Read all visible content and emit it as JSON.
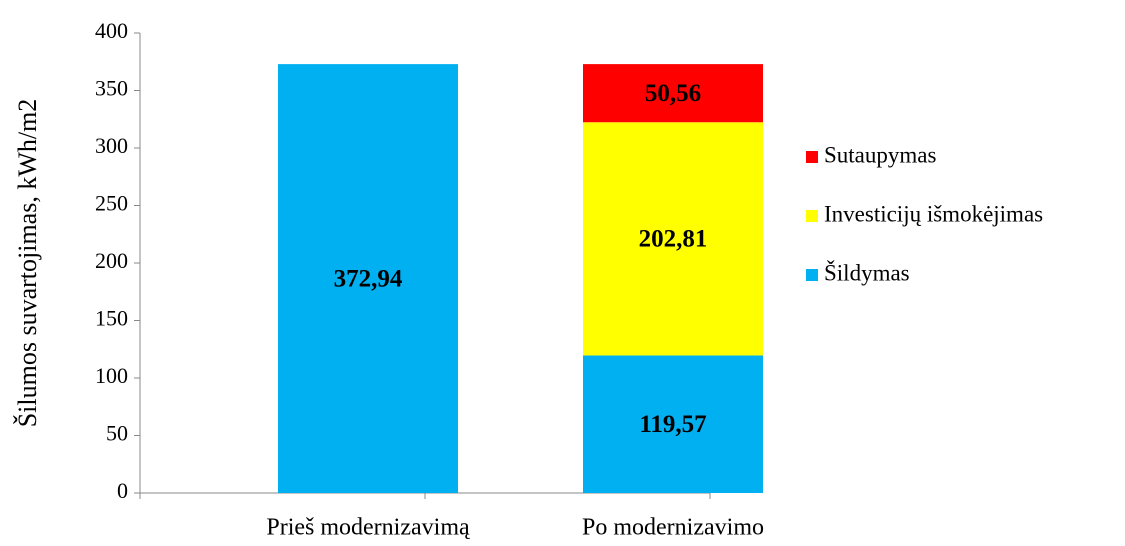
{
  "chart_data": {
    "type": "stacked_bar",
    "y_label": "Šilumos suvartojimas, kWh/m2",
    "categories": [
      "Prieš modernizavimą",
      "Po modernizavimo"
    ],
    "series": [
      {
        "name": "Šildymas",
        "color": "#00b0f0",
        "values": [
          372.94,
          119.57
        ],
        "value_labels": [
          "372,94",
          "119,57"
        ]
      },
      {
        "name": "Investicijų išmokėjimas",
        "color": "#ffff00",
        "values": [
          null,
          202.81
        ],
        "value_labels": [
          null,
          "202,81"
        ]
      },
      {
        "name": "Sutaupymas",
        "color": "#ff0000",
        "values": [
          null,
          50.56
        ],
        "value_labels": [
          null,
          "50,56"
        ]
      }
    ],
    "ylim": [
      0,
      400
    ],
    "yticks": [
      0,
      50,
      100,
      150,
      200,
      250,
      300,
      350,
      400
    ],
    "legend": "right"
  }
}
